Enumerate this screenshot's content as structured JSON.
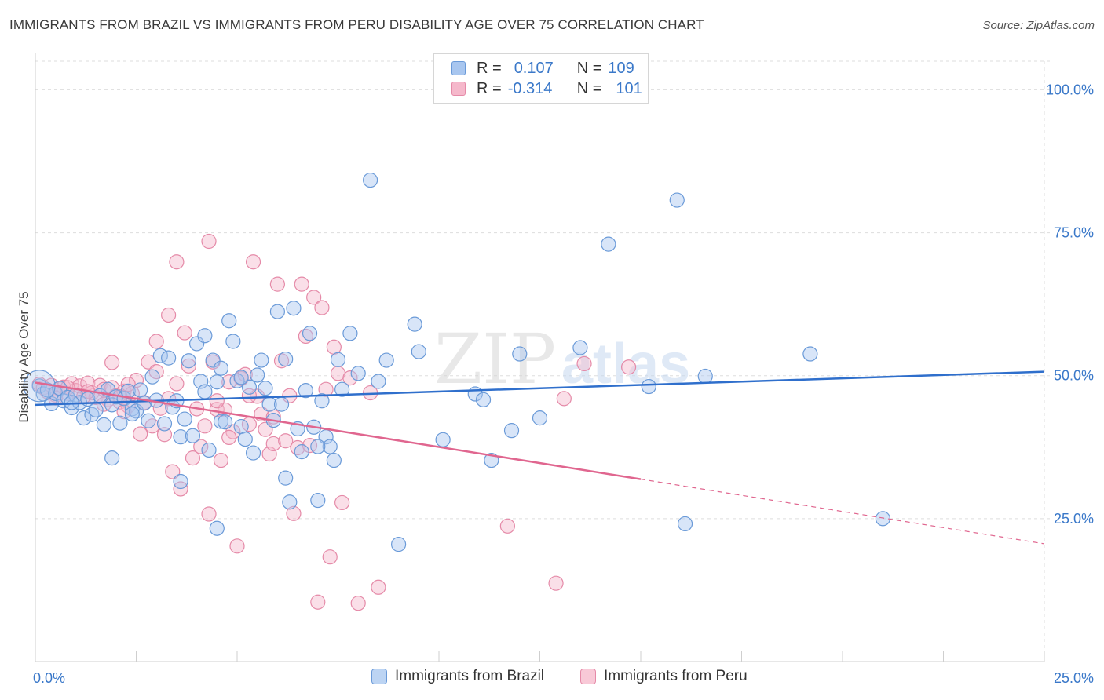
{
  "title": "IMMIGRANTS FROM BRAZIL VS IMMIGRANTS FROM PERU DISABILITY AGE OVER 75 CORRELATION CHART",
  "source": "Source: ZipAtlas.com",
  "watermark": {
    "zip": "ZIP",
    "atlas": "atlas"
  },
  "legend": {
    "r_label": "R =",
    "n_label": "N =",
    "brazil": {
      "r": "0.107",
      "n": "109"
    },
    "peru": {
      "r": "-0.314",
      "n": "101"
    }
  },
  "colors": {
    "brazil_fill": "#a8c6ef",
    "brazil_stroke": "#6a9ad8",
    "brazil_line": "#2f6fcc",
    "peru_fill": "#f5b8cb",
    "peru_stroke": "#e58aa8",
    "peru_line": "#e0668f",
    "axis_text": "#3a78c9",
    "grid": "#dddddd"
  },
  "chart_data": {
    "type": "scatter",
    "title": "IMMIGRANTS FROM BRAZIL VS IMMIGRANTS FROM PERU DISABILITY AGE OVER 75 CORRELATION CHART",
    "xlabel": "",
    "ylabel": "Disability Age Over 75",
    "xlim": [
      0,
      25
    ],
    "ylim": [
      0,
      105
    ],
    "x_tick_labels": [
      "0.0%",
      "25.0%"
    ],
    "y_ticks": [
      25,
      50,
      75,
      100
    ],
    "y_tick_labels": [
      "25.0%",
      "50.0%",
      "75.0%",
      "100.0%"
    ],
    "grid": true,
    "legend_position": "top-center",
    "series": [
      {
        "name": "Immigrants from Brazil",
        "trend": {
          "x": [
            0,
            25
          ],
          "y": [
            44.9,
            50.7
          ],
          "style": "solid"
        },
        "points": [
          [
            0.1,
            48.2
          ],
          [
            0.2,
            46.8
          ],
          [
            0.3,
            47.5
          ],
          [
            0.4,
            45.1
          ],
          [
            0.5,
            46.9
          ],
          [
            0.6,
            47.8
          ],
          [
            0.7,
            45.6
          ],
          [
            0.8,
            46.2
          ],
          [
            0.9,
            44.4
          ],
          [
            1.0,
            46.6
          ],
          [
            1.1,
            45.3
          ],
          [
            1.2,
            42.6
          ],
          [
            1.3,
            45.9
          ],
          [
            1.4,
            43.2
          ],
          [
            1.5,
            44.0
          ],
          [
            1.6,
            46.5
          ],
          [
            1.7,
            41.4
          ],
          [
            1.8,
            47.6
          ],
          [
            1.9,
            44.9
          ],
          [
            2.0,
            46.3
          ],
          [
            2.1,
            41.7
          ],
          [
            2.2,
            46.0
          ],
          [
            2.3,
            47.3
          ],
          [
            2.4,
            44.2
          ],
          [
            2.5,
            43.8
          ],
          [
            2.6,
            47.5
          ],
          [
            2.7,
            45.2
          ],
          [
            2.8,
            42.1
          ],
          [
            2.9,
            49.8
          ],
          [
            3.0,
            45.7
          ],
          [
            3.1,
            53.5
          ],
          [
            3.2,
            41.6
          ],
          [
            3.3,
            53.1
          ],
          [
            3.4,
            44.5
          ],
          [
            3.5,
            45.6
          ],
          [
            3.6,
            39.3
          ],
          [
            3.7,
            42.4
          ],
          [
            3.8,
            52.6
          ],
          [
            3.9,
            39.5
          ],
          [
            4.0,
            55.6
          ],
          [
            4.1,
            49.0
          ],
          [
            4.2,
            47.2
          ],
          [
            4.3,
            37.0
          ],
          [
            4.4,
            52.7
          ],
          [
            4.5,
            48.9
          ],
          [
            4.6,
            42.0
          ],
          [
            4.7,
            41.9
          ],
          [
            4.8,
            59.6
          ],
          [
            4.9,
            56.0
          ],
          [
            5.0,
            49.1
          ],
          [
            5.1,
            41.1
          ],
          [
            5.2,
            38.9
          ],
          [
            5.3,
            48.0
          ],
          [
            5.4,
            36.5
          ],
          [
            5.5,
            50.1
          ],
          [
            5.6,
            52.7
          ],
          [
            5.7,
            47.8
          ],
          [
            5.8,
            45.0
          ],
          [
            5.9,
            42.2
          ],
          [
            6.0,
            61.2
          ],
          [
            6.1,
            45.0
          ],
          [
            6.2,
            32.1
          ],
          [
            6.3,
            27.9
          ],
          [
            6.4,
            61.8
          ],
          [
            6.5,
            40.7
          ],
          [
            6.6,
            36.7
          ],
          [
            6.7,
            47.4
          ],
          [
            6.8,
            57.4
          ],
          [
            6.9,
            41.0
          ],
          [
            7.0,
            28.2
          ],
          [
            7.1,
            45.6
          ],
          [
            7.2,
            39.3
          ],
          [
            7.3,
            37.6
          ],
          [
            7.4,
            35.2
          ],
          [
            7.5,
            52.8
          ],
          [
            7.6,
            47.6
          ],
          [
            7.8,
            57.4
          ],
          [
            8.0,
            50.4
          ],
          [
            8.3,
            84.2
          ],
          [
            8.5,
            49.0
          ],
          [
            8.7,
            52.7
          ],
          [
            9.0,
            20.5
          ],
          [
            9.4,
            59.0
          ],
          [
            9.5,
            54.2
          ],
          [
            10.1,
            38.8
          ],
          [
            10.9,
            46.8
          ],
          [
            11.1,
            45.8
          ],
          [
            11.3,
            35.2
          ],
          [
            11.8,
            40.4
          ],
          [
            12.0,
            53.8
          ],
          [
            12.5,
            42.6
          ],
          [
            13.5,
            54.9
          ],
          [
            14.2,
            73.0
          ],
          [
            15.2,
            48.1
          ],
          [
            15.9,
            80.7
          ],
          [
            16.1,
            24.1
          ],
          [
            16.6,
            49.9
          ],
          [
            19.2,
            53.8
          ],
          [
            21.0,
            25.0
          ],
          [
            4.6,
            51.3
          ],
          [
            1.9,
            35.6
          ],
          [
            4.2,
            57.0
          ],
          [
            5.1,
            49.7
          ],
          [
            4.5,
            23.3
          ],
          [
            3.6,
            31.5
          ],
          [
            2.4,
            43.3
          ],
          [
            0.9,
            45.3
          ],
          [
            6.2,
            52.9
          ],
          [
            7.0,
            37.6
          ]
        ]
      },
      {
        "name": "Immigrants from Peru",
        "trend": {
          "x": [
            0,
            15
          ],
          "y": [
            48.8,
            31.9
          ],
          "style": "solid",
          "dashed_to": {
            "x": 25,
            "y": 20.6
          }
        },
        "points": [
          [
            0.1,
            48.5
          ],
          [
            0.2,
            47.9
          ],
          [
            0.3,
            47.2
          ],
          [
            0.4,
            48.3
          ],
          [
            0.5,
            46.6
          ],
          [
            0.6,
            47.7
          ],
          [
            0.7,
            48.0
          ],
          [
            0.8,
            46.9
          ],
          [
            0.9,
            48.6
          ],
          [
            1.0,
            47.4
          ],
          [
            1.1,
            48.2
          ],
          [
            1.2,
            46.4
          ],
          [
            1.3,
            48.7
          ],
          [
            1.4,
            47.0
          ],
          [
            1.5,
            46.2
          ],
          [
            1.6,
            48.3
          ],
          [
            1.7,
            47.6
          ],
          [
            1.8,
            45.8
          ],
          [
            1.9,
            47.9
          ],
          [
            2.0,
            46.5
          ],
          [
            2.1,
            45.4
          ],
          [
            2.2,
            47.3
          ],
          [
            2.3,
            44.7
          ],
          [
            2.4,
            46.9
          ],
          [
            2.5,
            49.2
          ],
          [
            2.6,
            39.8
          ],
          [
            2.7,
            45.3
          ],
          [
            2.8,
            52.4
          ],
          [
            2.9,
            41.2
          ],
          [
            3.0,
            56.0
          ],
          [
            3.1,
            44.3
          ],
          [
            3.2,
            39.7
          ],
          [
            3.3,
            46.0
          ],
          [
            3.4,
            33.2
          ],
          [
            3.5,
            48.6
          ],
          [
            3.6,
            30.2
          ],
          [
            3.7,
            57.5
          ],
          [
            3.8,
            51.7
          ],
          [
            3.9,
            35.6
          ],
          [
            4.0,
            44.2
          ],
          [
            4.1,
            37.6
          ],
          [
            4.2,
            41.2
          ],
          [
            4.3,
            25.8
          ],
          [
            4.4,
            52.4
          ],
          [
            4.5,
            44.1
          ],
          [
            4.6,
            35.2
          ],
          [
            4.7,
            44.0
          ],
          [
            4.8,
            48.9
          ],
          [
            4.9,
            40.2
          ],
          [
            5.0,
            20.2
          ],
          [
            5.1,
            49.5
          ],
          [
            5.2,
            50.2
          ],
          [
            5.3,
            41.5
          ],
          [
            5.4,
            69.9
          ],
          [
            5.5,
            46.4
          ],
          [
            5.6,
            43.3
          ],
          [
            5.7,
            40.6
          ],
          [
            5.8,
            36.3
          ],
          [
            5.9,
            38.1
          ],
          [
            6.0,
            66.0
          ],
          [
            6.1,
            52.6
          ],
          [
            6.2,
            38.6
          ],
          [
            6.3,
            46.5
          ],
          [
            6.4,
            25.9
          ],
          [
            6.5,
            37.4
          ],
          [
            6.6,
            66.0
          ],
          [
            6.7,
            56.9
          ],
          [
            6.8,
            37.8
          ],
          [
            6.9,
            63.7
          ],
          [
            7.0,
            10.4
          ],
          [
            7.1,
            61.9
          ],
          [
            7.2,
            47.6
          ],
          [
            7.3,
            18.3
          ],
          [
            7.4,
            55.0
          ],
          [
            7.5,
            50.4
          ],
          [
            7.6,
            27.8
          ],
          [
            7.8,
            49.6
          ],
          [
            8.0,
            10.2
          ],
          [
            8.3,
            47.0
          ],
          [
            8.5,
            13.0
          ],
          [
            13.1,
            46.0
          ],
          [
            11.7,
            23.7
          ],
          [
            12.9,
            13.7
          ],
          [
            13.6,
            52.1
          ],
          [
            14.7,
            51.5
          ],
          [
            1.9,
            52.3
          ],
          [
            2.1,
            46.3
          ],
          [
            2.2,
            43.7
          ],
          [
            1.7,
            45.0
          ],
          [
            1.3,
            47.2
          ],
          [
            3.3,
            60.6
          ],
          [
            3.5,
            69.9
          ],
          [
            4.3,
            73.5
          ],
          [
            5.9,
            42.8
          ],
          [
            5.3,
            46.5
          ],
          [
            4.8,
            39.2
          ],
          [
            2.3,
            48.5
          ],
          [
            0.8,
            47.9
          ],
          [
            0.5,
            46.1
          ],
          [
            3.0,
            50.7
          ],
          [
            4.5,
            45.6
          ]
        ]
      }
    ]
  },
  "bottom_legend": {
    "brazil": "Immigrants from Brazil",
    "peru": "Immigrants from Peru"
  }
}
